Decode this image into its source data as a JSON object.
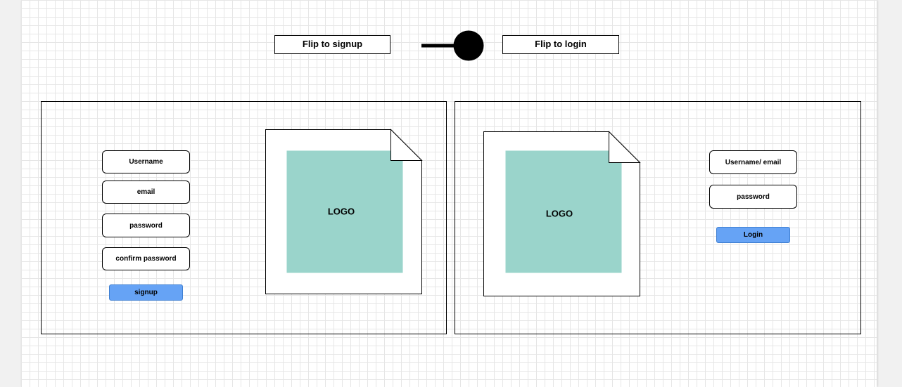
{
  "header": {
    "flip_signup_label": "Flip to signup",
    "flip_login_label": "Flip to login",
    "toggle_icon": "toggle-switch-icon"
  },
  "signup_panel": {
    "fields": [
      "Username",
      "email",
      "password",
      "confirm password"
    ],
    "submit_label": "signup",
    "logo_text": "LOGO"
  },
  "login_panel": {
    "fields": [
      "Username/ email",
      "password"
    ],
    "submit_label": "Login",
    "logo_text": "LOGO"
  },
  "colors": {
    "logo_fill": "#9ad4cb",
    "button_fill": "#66a3f5",
    "grid_line": "#e6e6e6",
    "page_bg": "#f1f1f1"
  }
}
